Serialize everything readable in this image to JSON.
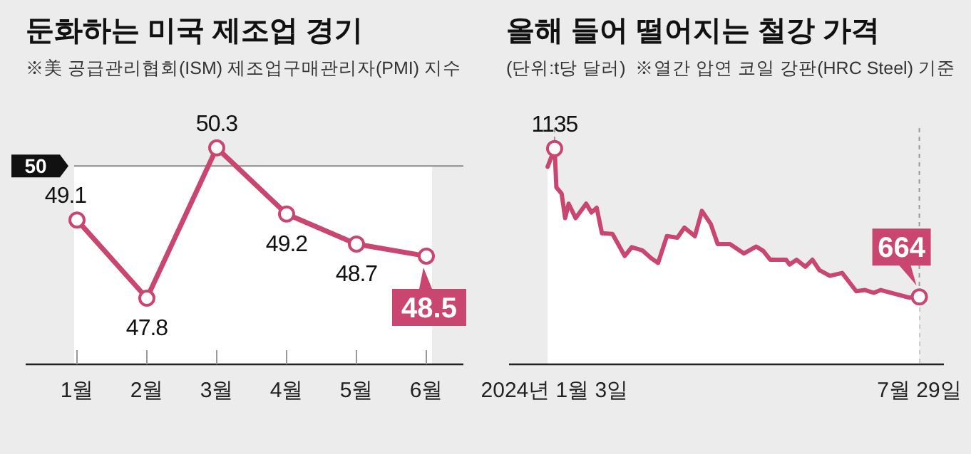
{
  "chart_data": [
    {
      "type": "line",
      "title": "둔화하는 미국 제조업 경기",
      "subtitle": "※美 공급관리협회(ISM) 제조업구매관리자(PMI) 지수",
      "categories": [
        "1월",
        "2월",
        "3월",
        "4월",
        "5월",
        "6월"
      ],
      "series": [
        {
          "color": "#c8466f",
          "values": [
            49.1,
            47.8,
            50.3,
            49.2,
            48.7,
            48.5
          ]
        }
      ],
      "data_labels": true,
      "marker": "circle",
      "tick_labels": "x",
      "ref_lines": [
        {
          "axis": "y",
          "value": 50,
          "label": "50",
          "color": "#8a8a8a"
        }
      ],
      "bands": [
        {
          "axis": "y",
          "from": 46.7,
          "to": 50,
          "color": "#ffffff"
        }
      ]
    },
    {
      "type": "area",
      "title": "올해 들어 떨어지는 철강 가격",
      "subtitle": "(단위:t당 달러)  ※열간 압연 코일 강판(HRC Steel) 기준",
      "x": [
        "2023-12-30",
        "2024-01-03",
        "2024-01-04",
        "2024-01-07",
        "2024-01-09",
        "2024-01-11",
        "2024-01-15",
        "2024-01-21",
        "2024-01-24",
        "2024-01-27",
        "2024-01-30",
        "2024-02-05",
        "2024-02-12",
        "2024-02-16",
        "2024-02-22",
        "2024-02-27",
        "2024-03-02",
        "2024-03-07",
        "2024-03-13",
        "2024-03-17",
        "2024-03-23",
        "2024-03-27",
        "2024-04-01",
        "2024-04-05",
        "2024-04-12",
        "2024-04-20",
        "2024-04-27",
        "2024-05-01",
        "2024-05-05",
        "2024-05-14",
        "2024-05-16",
        "2024-05-20",
        "2024-05-25",
        "2024-05-29",
        "2024-06-02",
        "2024-06-08",
        "2024-06-15",
        "2024-06-23",
        "2024-06-28",
        "2024-07-03",
        "2024-07-07",
        "2024-07-15",
        "2024-07-23",
        "2024-07-29"
      ],
      "series": [
        {
          "color": "#c8466f",
          "values": [
            1077,
            1135,
            1012,
            992,
            914,
            960,
            914,
            960,
            932,
            947,
            866,
            864,
            794,
            822,
            812,
            787,
            772,
            857,
            852,
            884,
            857,
            937,
            896,
            832,
            832,
            802,
            824,
            810,
            782,
            782,
            767,
            782,
            760,
            782,
            749,
            731,
            740,
            682,
            686,
            677,
            686,
            674,
            662,
            664
          ],
          "value_labels": [
            null,
            "1135",
            null,
            null,
            null,
            null,
            null,
            null,
            null,
            null,
            null,
            null,
            null,
            null,
            null,
            null,
            null,
            null,
            null,
            null,
            null,
            null,
            null,
            null,
            null,
            null,
            null,
            null,
            null,
            null,
            null,
            null,
            null,
            null,
            null,
            null,
            null,
            null,
            null,
            null,
            null,
            null,
            null,
            "664"
          ]
        }
      ],
      "xlim": [
        "2023-12-08",
        "2024-08-12"
      ],
      "ylim": [
        450,
        1200
      ],
      "tick_labels": "x",
      "xticks": [
        {
          "value": "2024-01-03",
          "label": "2024년 1월 3일"
        },
        {
          "value": "2024-07-29",
          "label": "7월 29일"
        }
      ],
      "ref_lines": [
        {
          "axis": "x",
          "value": "2024-01-03",
          "color": "#999999",
          "line_style": "dashed"
        },
        {
          "axis": "x",
          "value": "2024-07-29",
          "color": "#999999",
          "line_style": "dashed"
        }
      ]
    }
  ]
}
